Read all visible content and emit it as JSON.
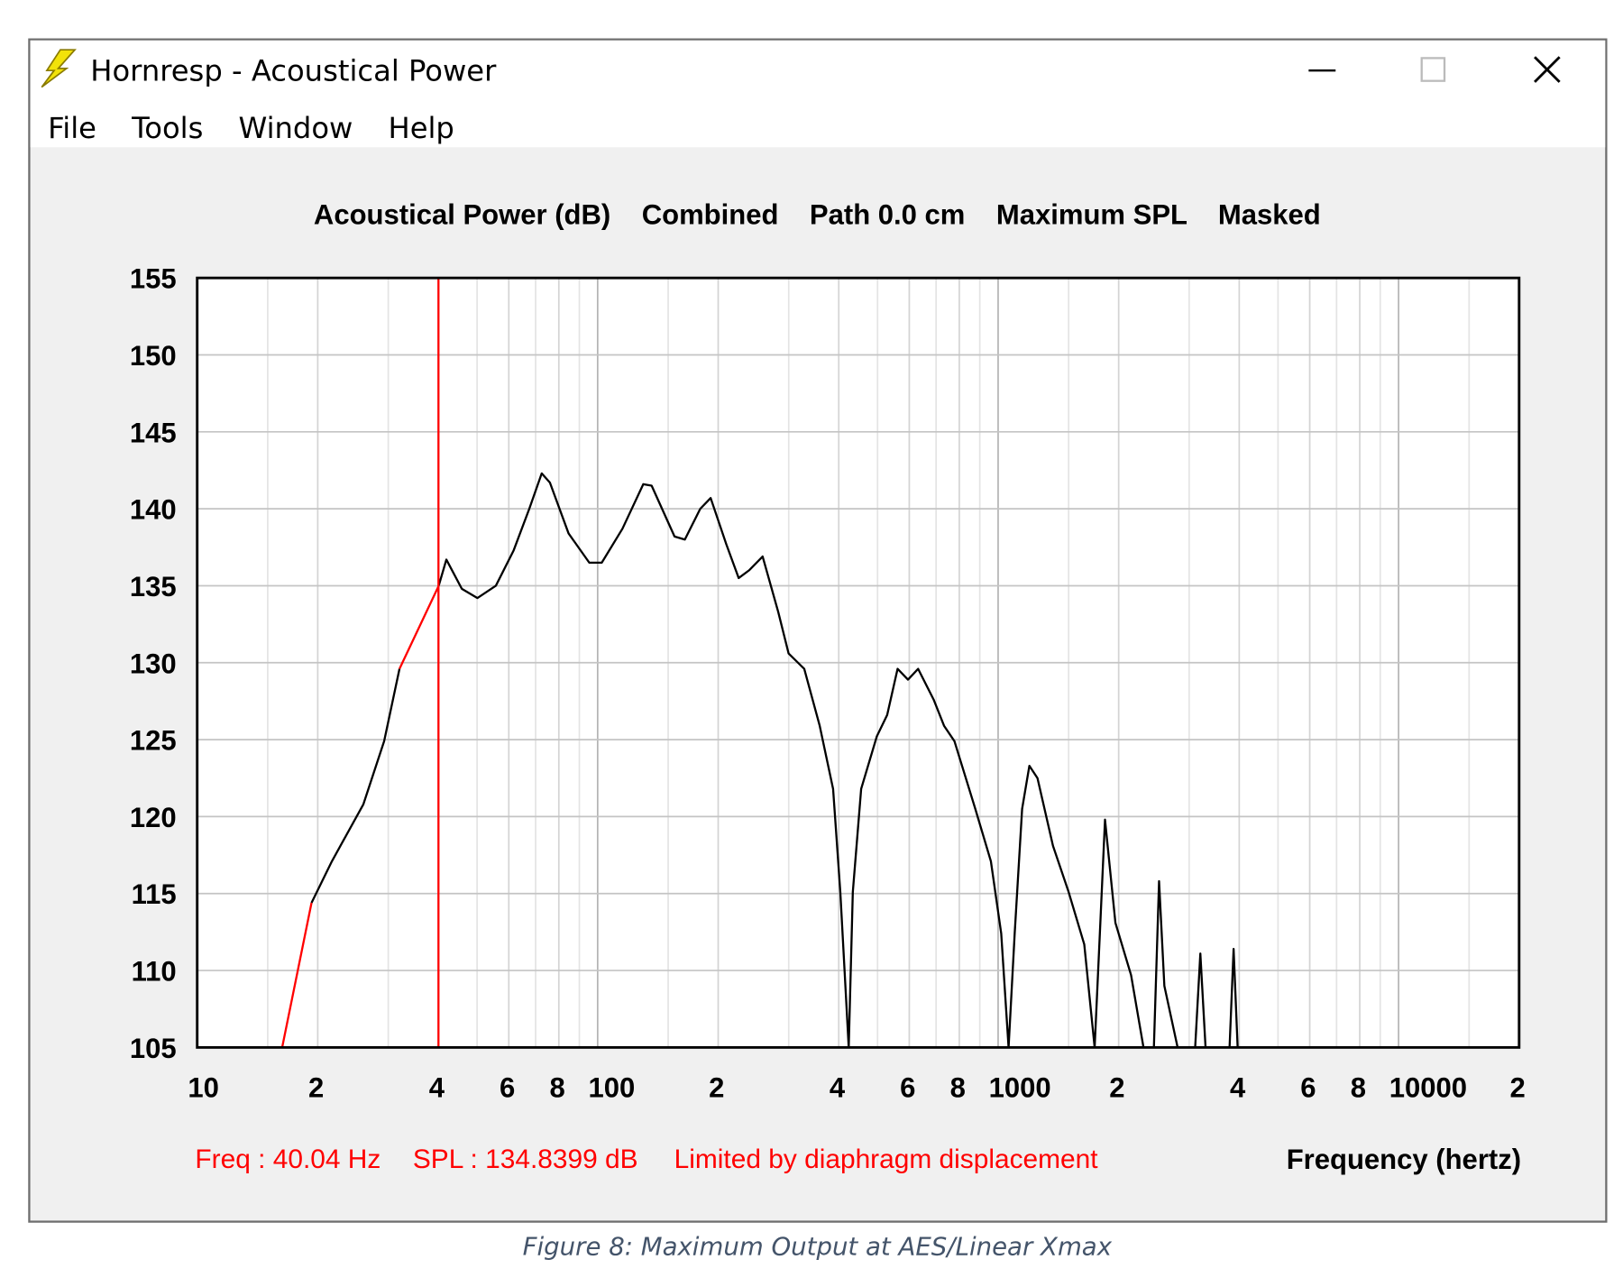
{
  "window": {
    "title": "Hornresp - Acoustical Power",
    "menu": [
      "File",
      "Tools",
      "Window",
      "Help"
    ]
  },
  "chart_data": {
    "type": "line",
    "title": "Acoustical Power (dB)    Combined    Path 0.0 cm    Maximum SPL    Masked",
    "x_label": "Frequency (hertz)",
    "xscale": "log",
    "xlim": [
      10,
      20000
    ],
    "xticks": [
      10,
      {
        "value": 20,
        "label": "2"
      },
      {
        "value": 40,
        "label": "4"
      },
      {
        "value": 60,
        "label": "6"
      },
      {
        "value": 80,
        "label": "8"
      },
      100,
      {
        "value": 200,
        "label": "2"
      },
      {
        "value": 400,
        "label": "4"
      },
      {
        "value": 600,
        "label": "6"
      },
      {
        "value": 800,
        "label": "8"
      },
      1000,
      {
        "value": 2000,
        "label": "2"
      },
      {
        "value": 4000,
        "label": "4"
      },
      {
        "value": 6000,
        "label": "6"
      },
      {
        "value": 8000,
        "label": "8"
      },
      10000,
      {
        "value": 20000,
        "label": "2"
      }
    ],
    "ylim": [
      105,
      155
    ],
    "yticks": [
      105,
      110,
      115,
      120,
      125,
      130,
      135,
      140,
      145,
      150,
      155
    ],
    "grid": true,
    "cursor_x": 40.04,
    "cursor_color": "#ff0000",
    "status": [
      "Freq : 40.04 Hz",
      "SPL : 134.8399 dB",
      "Limited by diaphragm displacement"
    ],
    "series": [
      {
        "color": "#ff0000",
        "x": [
          16.3,
          19.3,
          null,
          32.0,
          40.1
        ],
        "values": [
          105.0,
          114.4,
          null,
          129.6,
          135.0
        ]
      },
      {
        "color": "#000000",
        "x": [
          19.3,
          21.7,
          26.0,
          29.3,
          32.0,
          null,
          40.1,
          41.9,
          45.8,
          50.1,
          55.7,
          61.7,
          67.5,
          72.5,
          76.0,
          84.6,
          95.3,
          102.4,
          115.3,
          130.0,
          136.4,
          155.6,
          165.1,
          180.4,
          191.5,
          209.5,
          225.0,
          238.8,
          258.2,
          282.4,
          299.8,
          328.0,
          358.5,
          387.2,
          403.6,
          423.6,
          433.7,
          455.0,
          497.7,
          528.4,
          561.0,
          595.6,
          631.3,
          690.3,
          732.8,
          778.0,
          877.1,
          959.3,
          1018,
          1062,
          1100,
          1148,
          1197,
          1254,
          1371,
          1500,
          1641,
          1742,
          1795,
          1849,
          1963,
          2148,
          2307,
          null,
          2449,
          2523,
          2601,
          2807,
          null,
          3105,
          3199,
          3296,
          null,
          3784,
          3873,
          3964
        ],
        "values": [
          114.4,
          117.1,
          120.8,
          124.9,
          129.6,
          null,
          135.0,
          136.7,
          134.8,
          134.2,
          135.0,
          137.3,
          140.0,
          142.3,
          141.7,
          138.4,
          136.5,
          136.5,
          138.7,
          141.6,
          141.5,
          138.2,
          138.0,
          140.0,
          140.7,
          137.7,
          135.5,
          136.0,
          136.9,
          133.3,
          130.6,
          129.6,
          125.9,
          121.8,
          115.1,
          105.0,
          115.1,
          121.8,
          125.2,
          126.6,
          129.6,
          128.9,
          129.6,
          127.6,
          125.9,
          124.9,
          120.5,
          117.1,
          112.4,
          105.0,
          112.4,
          120.5,
          123.3,
          122.5,
          118.1,
          115.1,
          111.7,
          105.0,
          112.4,
          119.8,
          113.1,
          109.7,
          105.0,
          null,
          105.0,
          115.8,
          109.0,
          105.0,
          null,
          105.0,
          111.1,
          105.0,
          null,
          105.0,
          111.4,
          105.0
        ]
      }
    ]
  },
  "caption": "Figure 8: Maximum Output at AES/Linear Xmax"
}
